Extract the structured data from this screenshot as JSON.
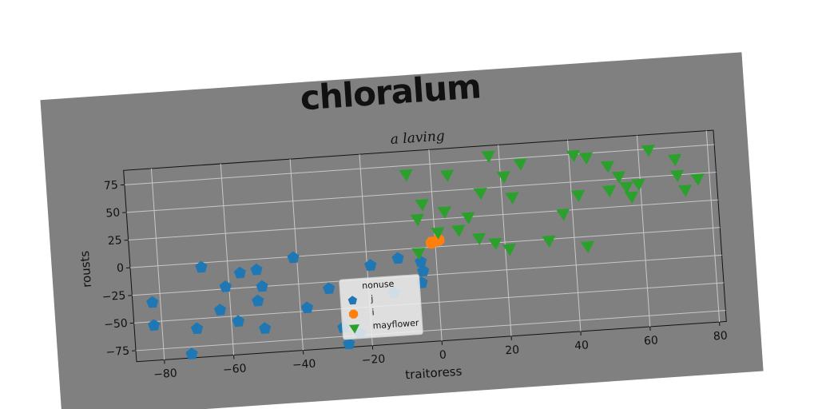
{
  "chart_data": {
    "type": "scatter",
    "title": "chloralum",
    "subtitle": "a laving",
    "x_label": "traitoress",
    "y_label": "rousts",
    "xlim": [
      -88,
      82
    ],
    "ylim": [
      -85,
      88
    ],
    "xticks": [
      {
        "value": -80,
        "label": "−80"
      },
      {
        "value": -60,
        "label": "−60"
      },
      {
        "value": -40,
        "label": "−40"
      },
      {
        "value": -20,
        "label": "−20"
      },
      0,
      20,
      40,
      60,
      80
    ],
    "yticks": [
      {
        "value": -75,
        "label": "−75"
      },
      {
        "value": -50,
        "label": "−50"
      },
      {
        "value": -25,
        "label": "−25"
      },
      0,
      25,
      50,
      75
    ],
    "grid": true,
    "legend_title": "nonuse",
    "legend_position": "lower center",
    "series": [
      {
        "name": "j",
        "color": "#1f77b4",
        "marker": "pentagon",
        "x": [
          -82.3,
          -82.3,
          -72,
          -70,
          -67.6,
          -63,
          -61,
          -58,
          -56.6,
          -51.8,
          -52,
          -50.5,
          -50.5,
          -41,
          -38,
          -31.4,
          -28,
          -26.7,
          -23.3,
          -19,
          -11,
          -12.8,
          -4.6,
          -4,
          -4.5
        ],
        "y": [
          -32.7,
          -53.4,
          -81.5,
          -59,
          -4,
          -43.7,
          -23,
          -55,
          -11.5,
          -9.7,
          -37.8,
          -25,
          -63,
          -1,
          -47,
          -31,
          -67,
          -82,
          -73,
          -12.7,
          -8,
          -38.7,
          -31.5,
          -21,
          -12.5
        ]
      },
      {
        "name": "i",
        "color": "#ff7f0e",
        "marker": "octagon",
        "x": [
          -1,
          1
        ],
        "y": [
          4,
          6
        ]
      },
      {
        "name": "mayflower",
        "color": "#2ca02c",
        "marker": "triangle_down",
        "x": [
          -7,
          4.8,
          17,
          26,
          21,
          14,
          23,
          -3,
          -4.6,
          3.3,
          10,
          7,
          12.7,
          17.3,
          21.2,
          -4.9,
          32.7,
          37.3,
          43.7,
          42,
          41.4,
          45,
          51,
          54,
          51,
          56,
          57.3,
          59.5,
          63,
          70.4,
          70.8,
          72.8,
          76.6,
          1
        ],
        "y": [
          67.7,
          64.8,
          79.5,
          70.5,
          60,
          46.6,
          40.7,
          40,
          26.9,
          32,
          25.4,
          14.5,
          6,
          0.5,
          -5.6,
          -3.6,
          -0.5,
          22.7,
          -8,
          38.6,
          74.9,
          72,
          63,
          53,
          40.9,
          43,
          34,
          45,
          75,
          65,
          50.5,
          36.7,
          46,
          13.7
        ]
      }
    ]
  }
}
